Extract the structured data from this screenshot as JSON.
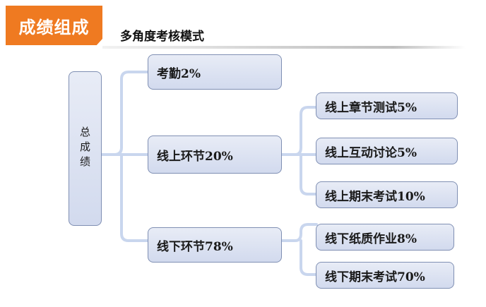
{
  "header": {
    "tag": "成绩组成",
    "subtitle": "多角度考核模式"
  },
  "diagram": {
    "root": "总成绩",
    "level1": [
      {
        "label": "考勤2%"
      },
      {
        "label": "线上环节20%",
        "children": [
          "线上章节测试5%",
          "线上互动讨论5%",
          "线上期末考试10%"
        ]
      },
      {
        "label": "线下环节78%",
        "children": [
          "线下纸质作业8%",
          "线下期末考试70%"
        ]
      }
    ]
  },
  "colors": {
    "accent": "#ef7a21",
    "node_fill": "#d9e0f1",
    "node_border": "#7f8fb3",
    "connector": "#c9d6ee"
  }
}
